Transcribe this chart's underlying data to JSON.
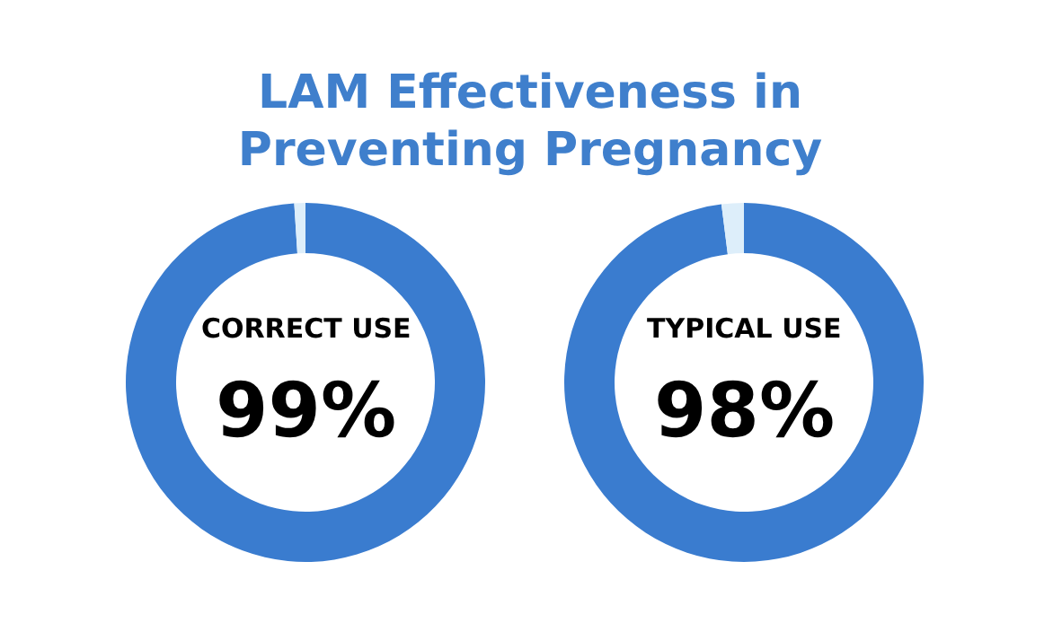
{
  "chart_data": [
    {
      "type": "donut",
      "title": "LAM Effectiveness in Preventing Pregnancy",
      "categories": [
        null,
        null
      ],
      "values": [
        99,
        1
      ],
      "colors": [
        "#3a7ccf",
        "#ddeefa"
      ],
      "value_labels": [
        "99%",
        null
      ],
      "annotations": [
        "CORRECT USE"
      ],
      "legend": false
    },
    {
      "type": "donut",
      "categories": [
        null,
        null
      ],
      "values": [
        98,
        2
      ],
      "colors": [
        "#3a7ccf",
        "#ddeefa"
      ],
      "value_labels": [
        "98%",
        null
      ],
      "annotations": [
        "TYPICAL USE"
      ],
      "legend": false
    }
  ]
}
